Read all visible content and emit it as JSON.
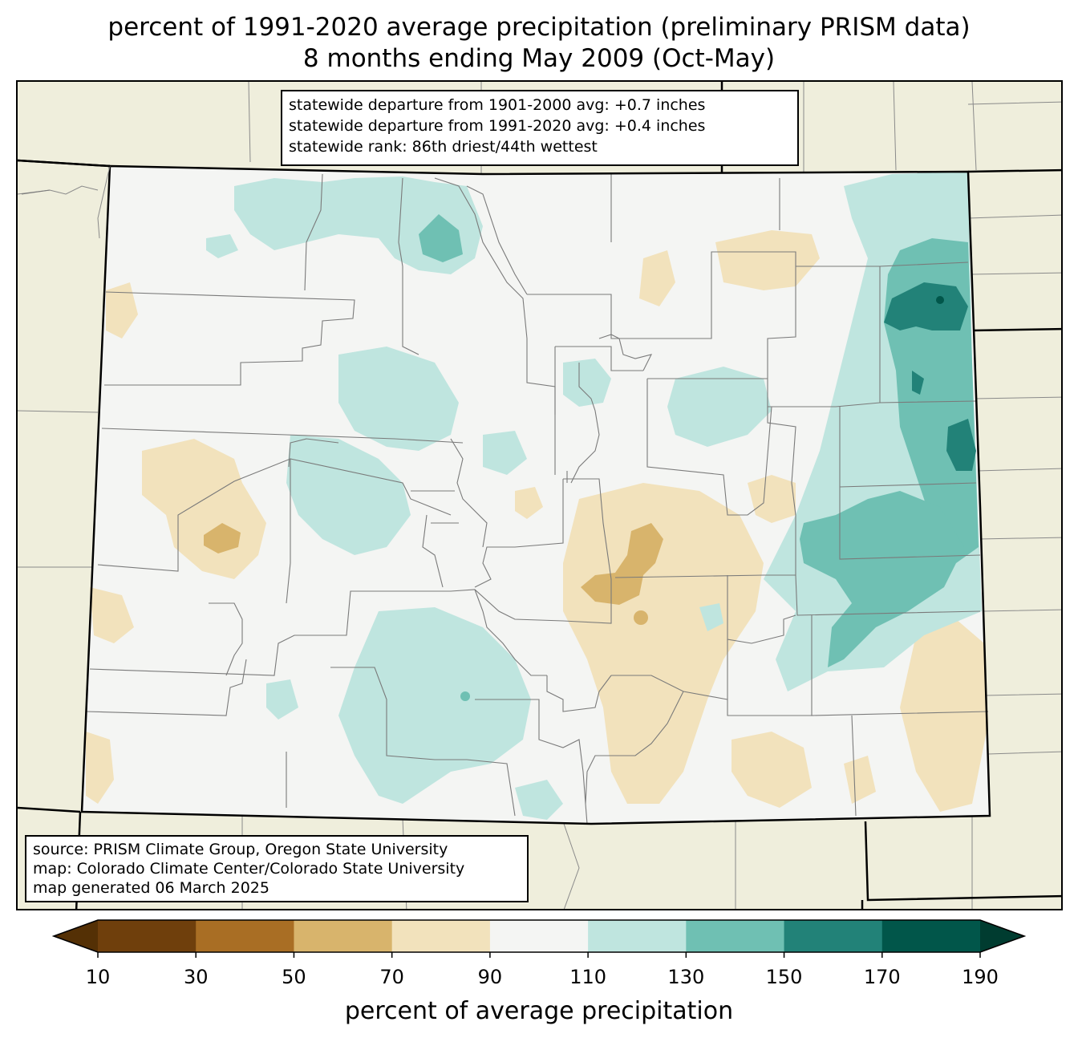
{
  "title": {
    "line1": "percent of 1991-2020 average precipitation (preliminary PRISM data)",
    "line2": "8 months ending May 2009 (Oct-May)"
  },
  "stats": {
    "line1": "statewide departure from 1901-2000 avg: +0.7 inches",
    "line2": "statewide departure from 1991-2020 avg: +0.4 inches",
    "line3": "statewide rank: 86th driest/44th wettest"
  },
  "source": {
    "line1": "source: PRISM Climate Group, Oregon State University",
    "line2": "map: Colorado Climate Center/Colorado State University",
    "line3": "map generated 06 March 2025"
  },
  "colorbar": {
    "label": "percent of average precipitation",
    "ticks": [
      "10",
      "30",
      "50",
      "70",
      "90",
      "110",
      "130",
      "150",
      "170",
      "190"
    ],
    "under_color": "#543005",
    "over_color": "#003c30",
    "colors": [
      "#6f3f0c",
      "#a96e24",
      "#d8b46c",
      "#f2e2bc",
      "#f4f5f3",
      "#bfe5df",
      "#6fc0b3",
      "#228278",
      "#01564a"
    ]
  },
  "map_colors": {
    "background": "#efeedc",
    "state_fill": "#f4f5f3",
    "county_line": "#7a7a7a",
    "state_line": "#000000"
  }
}
